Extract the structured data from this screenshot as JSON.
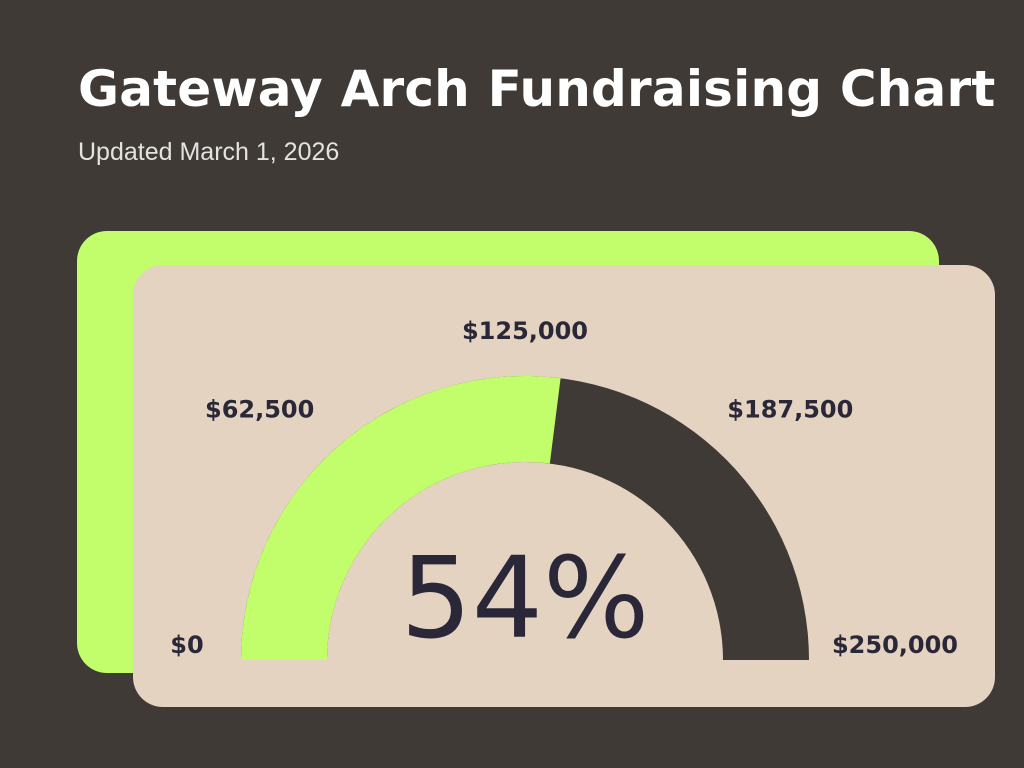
{
  "header": {
    "title": "Gateway Arch Fundraising Chart",
    "subtitle": "Updated March 1, 2026"
  },
  "colors": {
    "background": "#3f3a36",
    "accent": "#c2fd6c",
    "card": "#e4d3c1",
    "track": "#3f3a36",
    "text_dark": "#2a2838"
  },
  "chart_data": {
    "type": "gauge",
    "title": "Gateway Arch Fundraising Chart",
    "subtitle": "Updated March 1, 2026",
    "min": 0,
    "max": 250000,
    "value_fraction": 0.54,
    "value_label": "54%",
    "ticks": [
      {
        "value": 0,
        "label": "$0"
      },
      {
        "value": 62500,
        "label": "$62,500"
      },
      {
        "value": 125000,
        "label": "$125,000"
      },
      {
        "value": 187500,
        "label": "$187,500"
      },
      {
        "value": 250000,
        "label": "$250,000"
      }
    ]
  }
}
